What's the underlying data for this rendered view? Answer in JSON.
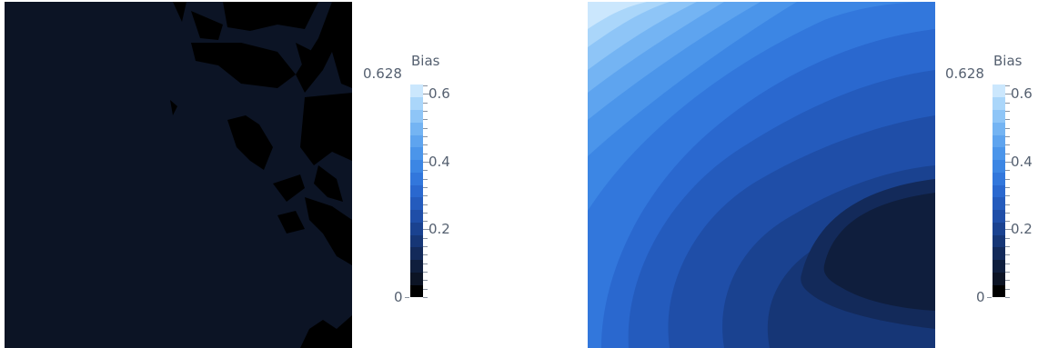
{
  "chart_data": [
    {
      "type": "heatmap",
      "title": "",
      "colorbar": {
        "title": "Bias",
        "data_max_label": "0.628",
        "range": [
          0,
          0.628
        ],
        "ticks": [
          {
            "value": 0,
            "label": "0"
          },
          {
            "value": 0.2,
            "label": "0.2"
          },
          {
            "value": 0.4,
            "label": "0.4"
          },
          {
            "value": 0.6,
            "label": "0.6"
          }
        ],
        "levels": 16,
        "colors": [
          "#000000",
          "#0c1425",
          "#0f1e3d",
          "#132a5a",
          "#163676",
          "#1a4290",
          "#1f4ea8",
          "#245bbd",
          "#2a68cf",
          "#3277dc",
          "#3c86e4",
          "#4b95ea",
          "#5ea4ef",
          "#74b4f3",
          "#8ec5f7",
          "#aad6fa",
          "#cbe7fd"
        ]
      },
      "field_description_values": {
        "dominant_bias": 0.02,
        "min_bias": 0.0
      }
    },
    {
      "type": "heatmap",
      "title": "",
      "colorbar": {
        "title": "Bias",
        "data_max_label": "0.628",
        "range": [
          0,
          0.628
        ],
        "ticks": [
          {
            "value": 0,
            "label": "0"
          },
          {
            "value": 0.2,
            "label": "0.2"
          },
          {
            "value": 0.4,
            "label": "0.4"
          },
          {
            "value": 0.6,
            "label": "0.6"
          }
        ],
        "levels": 16,
        "colors": [
          "#000000",
          "#0c1425",
          "#0f1e3d",
          "#132a5a",
          "#163676",
          "#1a4290",
          "#1f4ea8",
          "#245bbd",
          "#2a68cf",
          "#3277dc",
          "#3c86e4",
          "#4b95ea",
          "#5ea4ef",
          "#74b4f3",
          "#8ec5f7",
          "#aad6fa",
          "#cbe7fd"
        ]
      },
      "field_description_values": {
        "min_bias": 0.05,
        "max_bias": 0.62
      }
    }
  ]
}
